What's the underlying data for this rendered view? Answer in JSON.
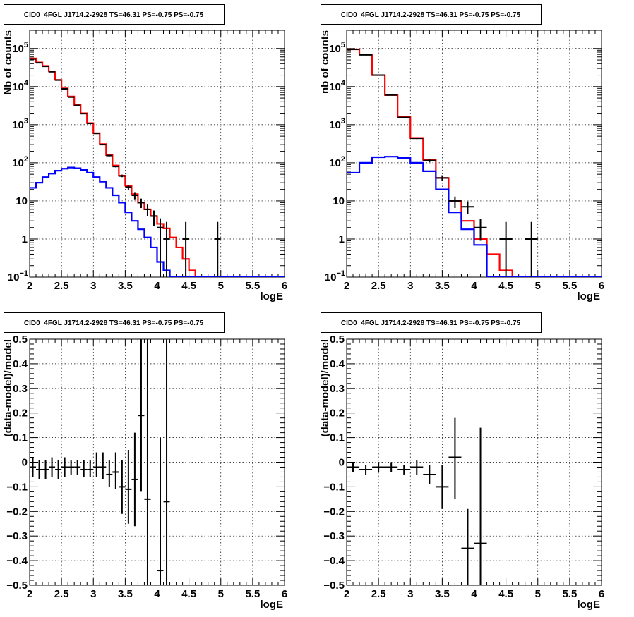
{
  "colors": {
    "model_total": "#ff0000",
    "model_source": "#0000ff",
    "data": "#000000",
    "grid": "#000000"
  },
  "chart_data": [
    {
      "id": "counts-1",
      "type": "line",
      "title": "CID0_4FGL J1714.2-2928 TS=46.31 PS=-0.75 PS=-0.75",
      "xlabel": "logE",
      "ylabel": "Nb of counts",
      "xlim": [
        2,
        6
      ],
      "yscale": "log",
      "ylim": [
        0.1,
        300000
      ],
      "xticks": [
        2,
        2.5,
        3,
        3.5,
        4,
        4.5,
        5,
        5.5,
        6
      ],
      "yticks": [
        {
          "v": 0.1,
          "m": "10",
          "e": "−1"
        },
        {
          "v": 1,
          "m": "1",
          "e": ""
        },
        {
          "v": 10,
          "m": "10",
          "e": ""
        },
        {
          "v": 100,
          "m": "10",
          "e": "2"
        },
        {
          "v": 1000,
          "m": "10",
          "e": "3"
        },
        {
          "v": 10000,
          "m": "10",
          "e": "4"
        },
        {
          "v": 100000,
          "m": "10",
          "e": "5"
        }
      ],
      "grid": true,
      "series": [
        {
          "role": "model_total",
          "style": "step",
          "edges": [
            2,
            2.1,
            2.2,
            2.3,
            2.4,
            2.5,
            2.6,
            2.7,
            2.8,
            2.9,
            3,
            3.1,
            3.2,
            3.3,
            3.4,
            3.5,
            3.6,
            3.7,
            3.8,
            3.9,
            4,
            4.1,
            4.2,
            4.3,
            4.4,
            4.5,
            4.6,
            6
          ],
          "values": [
            55000,
            43000,
            35000,
            25000,
            15000,
            9000,
            5500,
            3300,
            2000,
            1100,
            600,
            310,
            160,
            85,
            46,
            25,
            15,
            9,
            6,
            4,
            2.5,
            1.9,
            1.1,
            0.6,
            0.3,
            0.15,
            0.1
          ]
        },
        {
          "role": "model_source",
          "style": "step",
          "edges": [
            2,
            2.1,
            2.2,
            2.3,
            2.4,
            2.5,
            2.6,
            2.7,
            2.8,
            2.9,
            3,
            3.1,
            3.2,
            3.3,
            3.4,
            3.5,
            3.6,
            3.7,
            3.8,
            3.9,
            4,
            4.1,
            4.2,
            4.3,
            4.4,
            4.5,
            4.6,
            6
          ],
          "values": [
            22,
            30,
            42,
            52,
            62,
            70,
            75,
            72,
            65,
            55,
            42,
            32,
            22,
            14,
            9,
            5,
            3,
            1.8,
            1.1,
            0.6,
            0.25,
            0.15,
            0.1,
            0.1,
            0.1,
            0.1,
            0.1
          ]
        },
        {
          "role": "data",
          "style": "errorbar",
          "xerr": 0.05,
          "x": [
            2.05,
            2.15,
            2.25,
            2.35,
            2.45,
            2.55,
            2.65,
            2.75,
            2.85,
            2.95,
            3.05,
            3.15,
            3.25,
            3.35,
            3.45,
            3.55,
            3.65,
            3.75,
            3.85,
            3.95,
            4.05,
            4.15,
            4.45,
            4.95
          ],
          "y": [
            53000,
            42000,
            34000,
            24500,
            14800,
            8700,
            5300,
            3200,
            1950,
            1080,
            590,
            300,
            155,
            80,
            45,
            23,
            14,
            9,
            6,
            4,
            2,
            1,
            1,
            1
          ],
          "ylo": [
            52000,
            41000,
            33000,
            24000,
            14500,
            8500,
            5150,
            3100,
            1900,
            1050,
            570,
            290,
            148,
            76,
            42,
            19,
            11,
            6.5,
            4,
            2.2,
            0.1,
            0.1,
            0.1,
            0.1
          ],
          "yhi": [
            54000,
            43000,
            35000,
            25000,
            15200,
            8900,
            5450,
            3300,
            2000,
            1110,
            610,
            310,
            162,
            84,
            49,
            26,
            17,
            11.5,
            8,
            5.6,
            3.5,
            2.8,
            2.8,
            2.8
          ]
        }
      ]
    },
    {
      "id": "counts-2",
      "type": "line",
      "title": "CID0_4FGL J1714.2-2928 TS=46.31 PS=-0.75 PS=-0.75",
      "xlabel": "logE",
      "ylabel": "nb of counts",
      "xlim": [
        2,
        6
      ],
      "yscale": "log",
      "ylim": [
        0.1,
        300000
      ],
      "xticks": [
        2,
        2.5,
        3,
        3.5,
        4,
        4.5,
        5,
        5.5,
        6
      ],
      "yticks": [
        {
          "v": 0.1,
          "m": "10",
          "e": "−1"
        },
        {
          "v": 1,
          "m": "1",
          "e": ""
        },
        {
          "v": 10,
          "m": "10",
          "e": ""
        },
        {
          "v": 100,
          "m": "10",
          "e": "2"
        },
        {
          "v": 1000,
          "m": "10",
          "e": "3"
        },
        {
          "v": 10000,
          "m": "10",
          "e": "4"
        },
        {
          "v": 100000,
          "m": "10",
          "e": "5"
        }
      ],
      "grid": true,
      "series": [
        {
          "role": "model_total",
          "style": "step",
          "edges": [
            2,
            2.2,
            2.4,
            2.6,
            2.8,
            3,
            3.2,
            3.4,
            3.6,
            3.8,
            4,
            4.2,
            4.4,
            4.6,
            4.8,
            6
          ],
          "values": [
            95000,
            70000,
            20000,
            6000,
            1600,
            450,
            120,
            40,
            10,
            3,
            1,
            0.4,
            0.15,
            0.1,
            0.1
          ]
        },
        {
          "role": "model_source",
          "style": "step",
          "edges": [
            2,
            2.2,
            2.4,
            2.6,
            2.8,
            3,
            3.2,
            3.4,
            3.6,
            3.8,
            4,
            4.2,
            4.4,
            4.6,
            4.8,
            6
          ],
          "values": [
            55,
            100,
            140,
            145,
            135,
            100,
            60,
            20,
            5,
            1.8,
            0.7,
            0.1,
            0.1,
            0.1,
            0.1
          ]
        },
        {
          "role": "data",
          "style": "errorbar",
          "xerr": 0.1,
          "x": [
            2.1,
            2.3,
            2.5,
            2.7,
            2.9,
            3.1,
            3.3,
            3.5,
            3.7,
            3.9,
            4.1,
            4.5,
            4.9
          ],
          "y": [
            95000,
            68000,
            20000,
            6000,
            1550,
            440,
            115,
            40,
            10,
            7,
            2,
            1,
            1
          ],
          "ylo": [
            94000,
            67500,
            19800,
            5900,
            1500,
            420,
            104,
            33,
            6.5,
            4.5,
            0.9,
            0.1,
            0.1
          ],
          "yhi": [
            96000,
            68500,
            20200,
            6100,
            1600,
            460,
            126,
            47,
            13,
            9.7,
            3.3,
            2.8,
            2.8
          ]
        }
      ]
    },
    {
      "id": "resid-1",
      "type": "scatter",
      "title": "CID0_4FGL J1714.2-2928 TS=46.31 PS=-0.75 PS=-0.75",
      "xlabel": "logE",
      "ylabel": "(data-model)/model",
      "xlim": [
        2,
        6
      ],
      "yscale": "linear",
      "ylim": [
        -0.5,
        0.5
      ],
      "xticks": [
        2,
        2.5,
        3,
        3.5,
        4,
        4.5,
        5,
        5.5,
        6
      ],
      "yticks": [
        {
          "v": -0.5,
          "m": "−0.5"
        },
        {
          "v": -0.4,
          "m": "−0.4"
        },
        {
          "v": -0.3,
          "m": "−0.3"
        },
        {
          "v": -0.2,
          "m": "−0.2"
        },
        {
          "v": -0.1,
          "m": "−0.1"
        },
        {
          "v": 0,
          "m": "0"
        },
        {
          "v": 0.1,
          "m": "0.1"
        },
        {
          "v": 0.2,
          "m": "0.2"
        },
        {
          "v": 0.3,
          "m": "0.3"
        },
        {
          "v": 0.4,
          "m": "0.4"
        },
        {
          "v": 0.5,
          "m": "0.5"
        }
      ],
      "grid": true,
      "series": [
        {
          "role": "data",
          "style": "errorbar",
          "xerr": 0.05,
          "x": [
            2.05,
            2.15,
            2.25,
            2.35,
            2.45,
            2.55,
            2.65,
            2.75,
            2.85,
            2.95,
            3.05,
            3.15,
            3.25,
            3.35,
            3.45,
            3.55,
            3.65,
            3.75,
            3.85,
            4.05,
            4.15
          ],
          "y": [
            -0.02,
            -0.03,
            -0.03,
            -0.02,
            -0.03,
            -0.02,
            -0.02,
            -0.02,
            -0.03,
            -0.03,
            -0.02,
            -0.02,
            -0.05,
            -0.04,
            -0.1,
            -0.11,
            -0.07,
            0.19,
            -0.15,
            -0.44,
            -0.16
          ],
          "ylo": [
            -0.06,
            -0.07,
            -0.07,
            -0.06,
            -0.07,
            -0.06,
            -0.05,
            -0.05,
            -0.06,
            -0.06,
            -0.06,
            -0.07,
            -0.1,
            -0.11,
            -0.21,
            -0.25,
            -0.26,
            -0.12,
            -0.5,
            -0.5,
            -0.5
          ],
          "yhi": [
            0.02,
            0.01,
            0.01,
            0.02,
            0.01,
            0.02,
            0.01,
            0.01,
            0.01,
            0.01,
            0.04,
            0.04,
            0.01,
            0.04,
            0.01,
            0.05,
            0.12,
            0.5,
            0.5,
            0.1,
            0.5
          ]
        }
      ]
    },
    {
      "id": "resid-2",
      "type": "scatter",
      "title": "CID0_4FGL J1714.2-2928 TS=46.31 PS=-0.75 PS=-0.75",
      "xlabel": "logE",
      "ylabel": "(data-model)/model",
      "xlim": [
        2,
        6
      ],
      "yscale": "linear",
      "ylim": [
        -0.5,
        0.5
      ],
      "xticks": [
        2,
        2.5,
        3,
        3.5,
        4,
        4.5,
        5,
        5.5,
        6
      ],
      "yticks": [
        {
          "v": -0.5,
          "m": "−0.5"
        },
        {
          "v": -0.4,
          "m": "−0.4"
        },
        {
          "v": -0.3,
          "m": "−0.3"
        },
        {
          "v": -0.2,
          "m": "−0.2"
        },
        {
          "v": -0.1,
          "m": "−0.1"
        },
        {
          "v": 0,
          "m": "0"
        },
        {
          "v": 0.1,
          "m": "0.1"
        },
        {
          "v": 0.2,
          "m": "0.2"
        },
        {
          "v": 0.3,
          "m": "0.3"
        },
        {
          "v": 0.4,
          "m": "0.4"
        },
        {
          "v": 0.5,
          "m": "0.5"
        }
      ],
      "grid": true,
      "series": [
        {
          "role": "data",
          "style": "errorbar",
          "xerr": 0.1,
          "x": [
            2.1,
            2.3,
            2.5,
            2.7,
            2.9,
            3.1,
            3.3,
            3.5,
            3.7,
            3.9,
            4.1
          ],
          "y": [
            -0.02,
            -0.03,
            -0.02,
            -0.02,
            -0.03,
            -0.02,
            -0.05,
            -0.1,
            0.02,
            -0.35,
            -0.33
          ],
          "ylo": [
            -0.04,
            -0.05,
            -0.04,
            -0.04,
            -0.05,
            -0.05,
            -0.09,
            -0.19,
            -0.15,
            -0.5,
            -0.5
          ],
          "yhi": [
            0.0,
            -0.01,
            0.0,
            0.0,
            -0.01,
            0.01,
            -0.01,
            -0.01,
            0.18,
            -0.19,
            0.14
          ]
        }
      ]
    }
  ]
}
